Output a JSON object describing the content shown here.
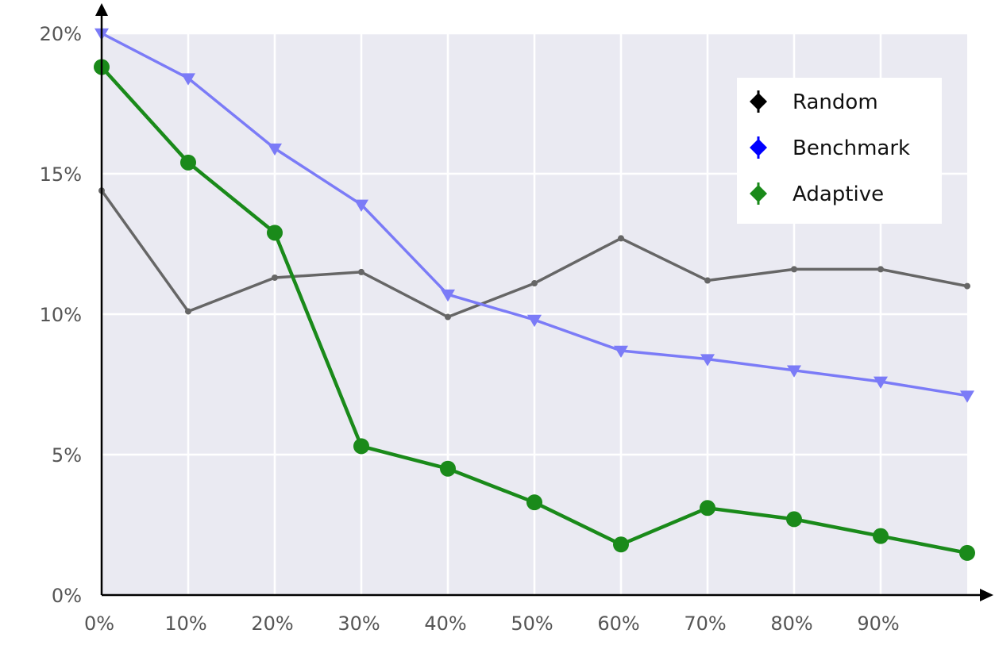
{
  "chart_data": {
    "type": "line",
    "title": "",
    "xlabel": "",
    "ylabel": "",
    "x": [
      0,
      10,
      20,
      30,
      40,
      50,
      60,
      70,
      80,
      90,
      100
    ],
    "xlim": [
      0,
      100
    ],
    "ylim": [
      0,
      20
    ],
    "x_tick_values": [
      0,
      10,
      20,
      30,
      40,
      50,
      60,
      70,
      80,
      90
    ],
    "x_tick_labels": [
      "0%",
      "10%",
      "20%",
      "30%",
      "40%",
      "50%",
      "60%",
      "70%",
      "80%",
      "90%"
    ],
    "y_tick_values": [
      0,
      5,
      10,
      15,
      20
    ],
    "y_tick_labels": [
      "0%",
      "5%",
      "10%",
      "15%",
      "20%"
    ],
    "grid": true,
    "background_color": "#eaeaf2",
    "legend_position": "top-right",
    "series": [
      {
        "name": "Random",
        "color": "#666666",
        "legend_color": "#000000",
        "marker": "dot",
        "values": [
          14.4,
          10.1,
          11.3,
          11.5,
          9.9,
          11.1,
          12.7,
          11.2,
          11.6,
          11.6,
          11.0
        ]
      },
      {
        "name": "Benchmark",
        "color": "#7b7bf7",
        "legend_color": "#0000ff",
        "marker": "triangle-down",
        "values": [
          20.0,
          18.4,
          15.9,
          13.9,
          10.7,
          9.8,
          8.7,
          8.4,
          8.0,
          7.6,
          7.1
        ]
      },
      {
        "name": "Adaptive",
        "color": "#1a8a1a",
        "legend_color": "#1a8a1a",
        "marker": "circle",
        "values": [
          18.8,
          15.4,
          12.9,
          5.3,
          4.5,
          3.3,
          1.8,
          3.1,
          2.7,
          2.1,
          1.5
        ]
      }
    ]
  }
}
